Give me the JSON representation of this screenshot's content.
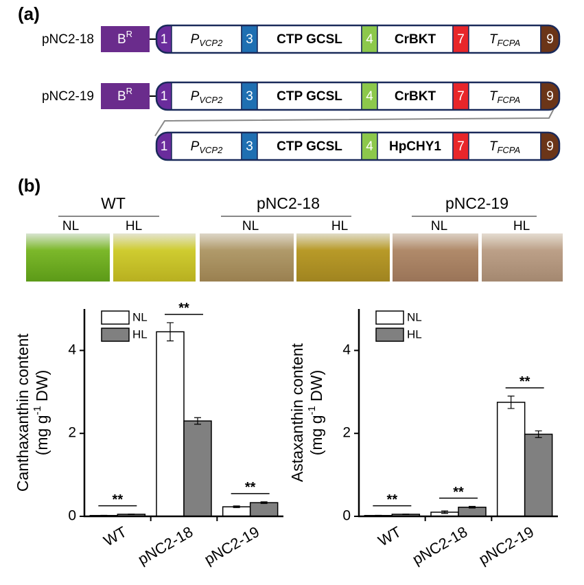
{
  "panel_labels": [
    "(a)",
    "(b)"
  ],
  "constructs": [
    {
      "name": "pNC2-18",
      "marker": {
        "text": "B",
        "sup": "R",
        "color": "#6a2c8c"
      },
      "cassettes": [
        [
          {
            "text": "1",
            "color": "#6a2c9c"
          },
          {
            "text": "P",
            "sub": "VCP2",
            "color": "#ffffff"
          },
          {
            "text": "3",
            "color": "#1f6fb2"
          },
          {
            "text": "CTP GCSL",
            "color": "#ffffff"
          },
          {
            "text": "4",
            "color": "#8cc84b"
          },
          {
            "text": "CrBKT",
            "color": "#ffffff"
          },
          {
            "text": "7",
            "color": "#e8262a"
          },
          {
            "text": "T",
            "sub": "FCPA",
            "color": "#ffffff"
          },
          {
            "text": "9",
            "color": "#6b3518"
          }
        ]
      ]
    },
    {
      "name": "pNC2-19",
      "marker": {
        "text": "B",
        "sup": "R",
        "color": "#6a2c8c"
      },
      "cassettes": [
        [
          {
            "text": "1",
            "color": "#6a2c9c"
          },
          {
            "text": "P",
            "sub": "VCP2",
            "color": "#ffffff"
          },
          {
            "text": "3",
            "color": "#1f6fb2"
          },
          {
            "text": "CTP GCSL",
            "color": "#ffffff"
          },
          {
            "text": "4",
            "color": "#8cc84b"
          },
          {
            "text": "CrBKT",
            "color": "#ffffff"
          },
          {
            "text": "7",
            "color": "#e8262a"
          },
          {
            "text": "T",
            "sub": "FCPA",
            "color": "#ffffff"
          },
          {
            "text": "9",
            "color": "#6b3518"
          }
        ],
        [
          {
            "text": "1",
            "color": "#6a2c9c"
          },
          {
            "text": "P",
            "sub": "VCP2",
            "color": "#ffffff"
          },
          {
            "text": "3",
            "color": "#1f6fb2"
          },
          {
            "text": "CTP GCSL",
            "color": "#ffffff"
          },
          {
            "text": "4",
            "color": "#8cc84b"
          },
          {
            "text": "HpCHY1",
            "color": "#ffffff"
          },
          {
            "text": "7",
            "color": "#e8262a"
          },
          {
            "text": "T",
            "sub": "FCPA",
            "color": "#ffffff"
          },
          {
            "text": "9",
            "color": "#6b3518"
          }
        ]
      ]
    }
  ],
  "photos": [
    {
      "label": "WT",
      "conditions": [
        "NL",
        "HL"
      ]
    },
    {
      "label": "pNC2-18",
      "conditions": [
        "NL",
        "HL"
      ]
    },
    {
      "label": "pNC2-19",
      "conditions": [
        "NL",
        "HL"
      ]
    }
  ],
  "chart_data": [
    {
      "type": "bar",
      "ylabel": "Canthaxanthin content",
      "ylabel_unit": {
        "before": "(mg g",
        "sup": "-1",
        "after": " DW)"
      },
      "categories": [
        "WT",
        "pNC2-18",
        "pNC2-19"
      ],
      "significance": [
        "**",
        "**",
        "**"
      ],
      "series": [
        {
          "name": "NL",
          "color": "#ffffff",
          "values": [
            0.02,
            4.45,
            0.23
          ],
          "errors": [
            0.005,
            0.22,
            0.02
          ]
        },
        {
          "name": "HL",
          "color": "#808080",
          "values": [
            0.05,
            2.3,
            0.33
          ],
          "errors": [
            0.005,
            0.08,
            0.02
          ]
        }
      ],
      "ylim": [
        0,
        5
      ],
      "yticks": [
        0,
        2,
        4
      ],
      "legend": "upper left"
    },
    {
      "type": "bar",
      "ylabel": "Astaxanthin content",
      "ylabel_unit": {
        "before": "(mg g",
        "sup": "-1",
        "after": " DW)"
      },
      "categories": [
        "WT",
        "pNC2-18",
        "pNC2-19"
      ],
      "significance": [
        "**",
        "**",
        "**"
      ],
      "series": [
        {
          "name": "NL",
          "color": "#ffffff",
          "values": [
            0.02,
            0.1,
            2.75
          ],
          "errors": [
            0.005,
            0.03,
            0.15
          ]
        },
        {
          "name": "HL",
          "color": "#808080",
          "values": [
            0.05,
            0.22,
            1.98
          ],
          "errors": [
            0.005,
            0.02,
            0.08
          ]
        }
      ],
      "ylim": [
        0,
        5
      ],
      "yticks": [
        0,
        2,
        4
      ],
      "legend": "upper left"
    }
  ]
}
